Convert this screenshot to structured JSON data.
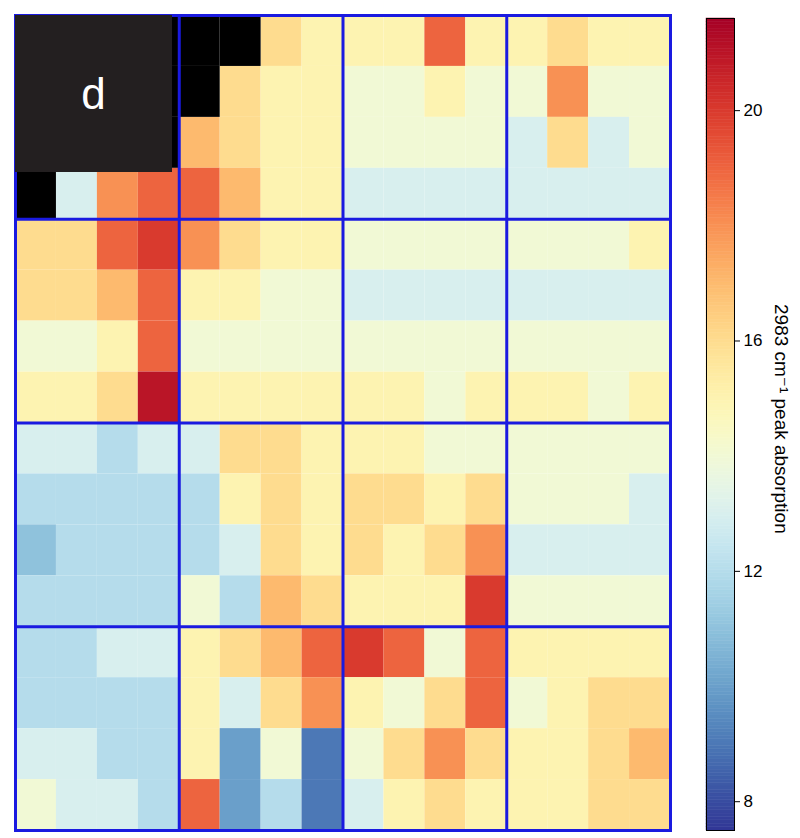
{
  "chart_data": {
    "type": "heatmap",
    "panel_label": "d",
    "colorbar_label": "2983 cm⁻¹ peak absorption",
    "clim": [
      7.5,
      21.6
    ],
    "cticks": [
      8,
      12,
      16,
      20
    ],
    "grid": true,
    "tick_labels": false,
    "values": [
      [
        null,
        null,
        null,
        null,
        null,
        null,
        16,
        15,
        15,
        15,
        19,
        15,
        15,
        16,
        15,
        15
      ],
      [
        null,
        null,
        null,
        null,
        null,
        16,
        15,
        15,
        14,
        14,
        15,
        14,
        14,
        18,
        14,
        14
      ],
      [
        null,
        null,
        null,
        null,
        17,
        16,
        15,
        15,
        14,
        14,
        14,
        14,
        13,
        16,
        13,
        14
      ],
      [
        null,
        13,
        18,
        19,
        19,
        17,
        15,
        15,
        13,
        13,
        13,
        13,
        13,
        13,
        13,
        13
      ],
      [
        16,
        16,
        19,
        20,
        18,
        16,
        15,
        15,
        14,
        14,
        14,
        14,
        14,
        14,
        14,
        15
      ],
      [
        16,
        16,
        17,
        19,
        15,
        15,
        14,
        14,
        13,
        13,
        13,
        13,
        13,
        13,
        13,
        13
      ],
      [
        14,
        14,
        15,
        19,
        14,
        14,
        14,
        14,
        14,
        14,
        14,
        14,
        14,
        14,
        14,
        14
      ],
      [
        15,
        15,
        16,
        21,
        15,
        15,
        15,
        15,
        15,
        15,
        14,
        15,
        15,
        15,
        14,
        15
      ],
      [
        13,
        13,
        12,
        13,
        13,
        16,
        16,
        15,
        15,
        15,
        14,
        14,
        14,
        14,
        14,
        14
      ],
      [
        12,
        12,
        12,
        12,
        12,
        15,
        16,
        15,
        16,
        16,
        15,
        16,
        14,
        14,
        14,
        13
      ],
      [
        11,
        12,
        12,
        12,
        12,
        13,
        16,
        15,
        16,
        15,
        16,
        18,
        13,
        13,
        13,
        13
      ],
      [
        12,
        12,
        12,
        12,
        14,
        12,
        17,
        16,
        15,
        15,
        15,
        20,
        14,
        14,
        14,
        14
      ],
      [
        12,
        12,
        13,
        13,
        15,
        16,
        17,
        19,
        20,
        19,
        14,
        19,
        15,
        15,
        15,
        15
      ],
      [
        12,
        12,
        12,
        12,
        15,
        13,
        16,
        18,
        15,
        14,
        16,
        19,
        14,
        15,
        16,
        16
      ],
      [
        13,
        13,
        12,
        12,
        15,
        10,
        14,
        9,
        14,
        16,
        18,
        16,
        15,
        15,
        16,
        17
      ],
      [
        14,
        13,
        13,
        12,
        19,
        10,
        12,
        9,
        13,
        15,
        16,
        15,
        15,
        15,
        16,
        16
      ]
    ]
  }
}
